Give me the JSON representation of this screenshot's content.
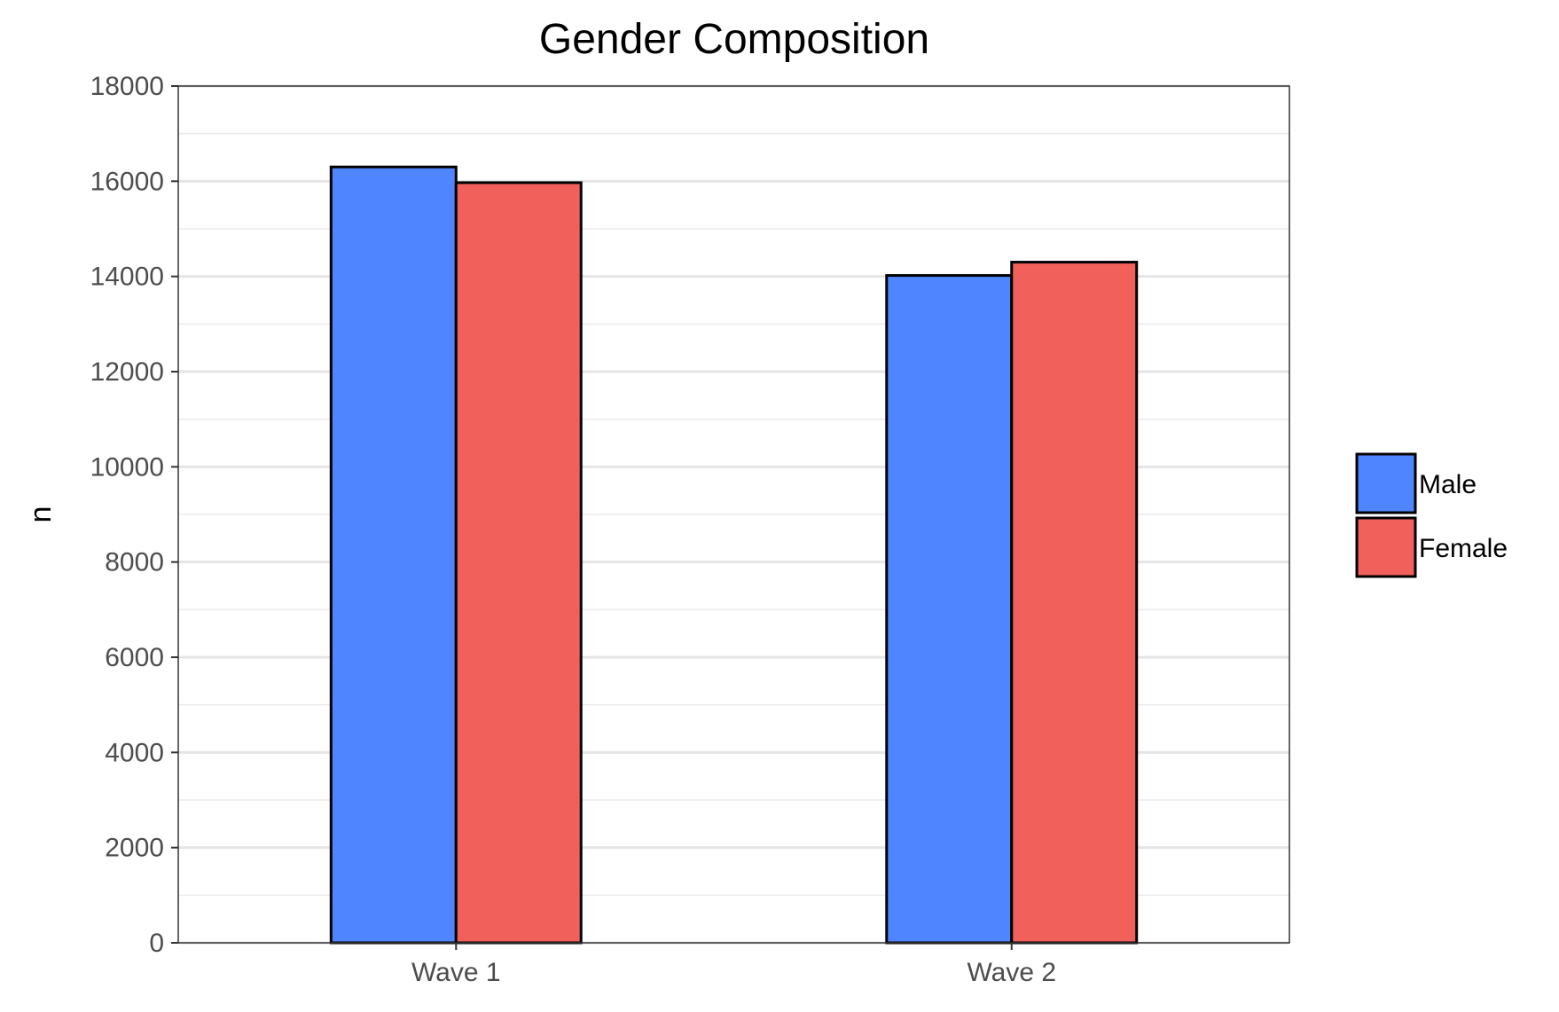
{
  "chart_data": {
    "type": "bar",
    "title": "Gender Composition",
    "xlabel": "",
    "ylabel": "n",
    "categories": [
      "Wave 1",
      "Wave 2"
    ],
    "series": [
      {
        "name": "Male",
        "values": [
          16300,
          14020
        ],
        "color": "#4F86FF"
      },
      {
        "name": "Female",
        "values": [
          15970,
          14300
        ],
        "color": "#F2605C"
      }
    ],
    "ylim": [
      0,
      18000
    ],
    "yticks": [
      "0",
      "2000",
      "4000",
      "6000",
      "8000",
      "10000",
      "12000",
      "14000",
      "16000",
      "18000"
    ],
    "grid": true,
    "legend_position": "right"
  }
}
